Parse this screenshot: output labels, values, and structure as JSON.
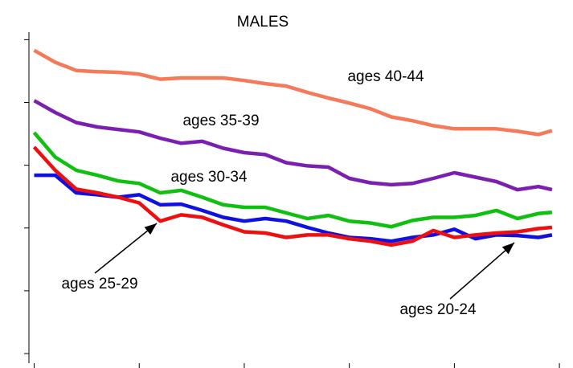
{
  "chart_data": {
    "type": "line",
    "title": "MALES",
    "x": [
      0,
      0.2,
      0.4,
      0.6,
      0.8,
      1.0,
      1.2,
      1.4,
      1.6,
      1.8,
      2.0,
      2.2,
      2.4,
      2.6,
      2.8,
      3.0,
      3.2,
      3.4,
      3.6,
      3.8,
      4.0,
      4.2,
      4.4,
      4.6,
      4.8,
      4.93
    ],
    "series": [
      {
        "color": "#f47a5a",
        "values": [
          4.83,
          4.64,
          4.51,
          4.49,
          4.48,
          4.45,
          4.37,
          4.39,
          4.39,
          4.39,
          4.35,
          4.3,
          4.26,
          4.16,
          4.07,
          3.99,
          3.9,
          3.77,
          3.71,
          3.63,
          3.58,
          3.58,
          3.58,
          3.54,
          3.49,
          3.55
        ]
      },
      {
        "color": "#7a1fb0",
        "values": [
          4.03,
          3.84,
          3.68,
          3.61,
          3.57,
          3.53,
          3.43,
          3.35,
          3.38,
          3.27,
          3.2,
          3.17,
          3.04,
          2.99,
          2.97,
          2.79,
          2.72,
          2.69,
          2.71,
          2.79,
          2.88,
          2.81,
          2.74,
          2.61,
          2.66,
          2.61
        ]
      },
      {
        "color": "#10c010",
        "values": [
          3.52,
          3.13,
          2.92,
          2.84,
          2.75,
          2.71,
          2.56,
          2.6,
          2.49,
          2.37,
          2.33,
          2.33,
          2.24,
          2.15,
          2.2,
          2.11,
          2.08,
          2.02,
          2.12,
          2.17,
          2.17,
          2.2,
          2.28,
          2.15,
          2.23,
          2.25
        ]
      },
      {
        "color": "#1010e0",
        "values": [
          2.84,
          2.84,
          2.56,
          2.53,
          2.49,
          2.53,
          2.37,
          2.38,
          2.28,
          2.17,
          2.11,
          2.15,
          2.11,
          2.01,
          1.92,
          1.85,
          1.83,
          1.79,
          1.85,
          1.89,
          1.98,
          1.83,
          1.89,
          1.88,
          1.85,
          1.89
        ]
      },
      {
        "color": "#ee1010",
        "values": [
          3.29,
          2.92,
          2.62,
          2.56,
          2.49,
          2.4,
          2.11,
          2.21,
          2.17,
          2.05,
          1.94,
          1.92,
          1.85,
          1.89,
          1.89,
          1.83,
          1.79,
          1.73,
          1.79,
          1.96,
          1.85,
          1.89,
          1.92,
          1.94,
          1.99,
          2.01
        ]
      }
    ],
    "annotations": [
      "ages 40-44",
      "ages 35-39",
      "ages 30-34",
      "ages 25-29",
      "ages 20-24"
    ],
    "xlim": [
      -0.05,
      5.03
    ],
    "xticks": [
      0,
      1,
      2,
      3,
      4,
      5
    ],
    "ylim": [
      -0.23,
      5.12
    ],
    "yticks": [
      0,
      1,
      2,
      3,
      4,
      5
    ]
  }
}
